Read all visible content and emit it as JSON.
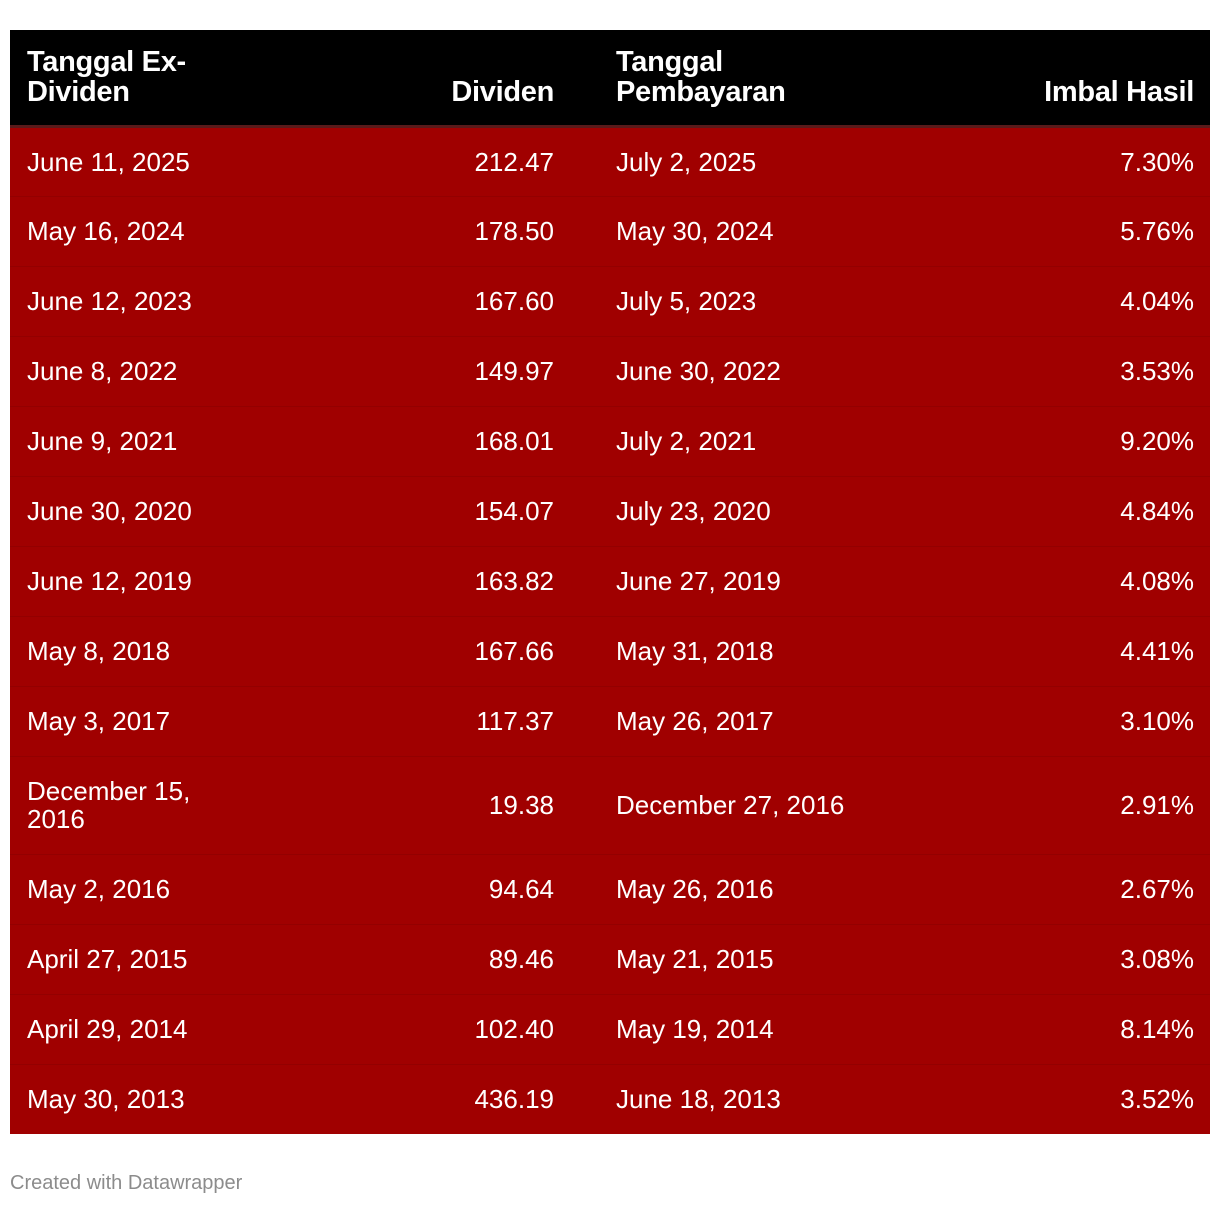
{
  "chart_data": {
    "type": "table",
    "columns": [
      "Tanggal Ex-Dividen",
      "Dividen",
      "Tanggal Pembayaran",
      "Imbal Hasil"
    ],
    "rows": [
      [
        "June 11, 2025",
        "212.47",
        "July 2, 2025",
        "7.30%"
      ],
      [
        "May 16, 2024",
        "178.50",
        "May 30, 2024",
        "5.76%"
      ],
      [
        "June 12, 2023",
        "167.60",
        "July 5, 2023",
        "4.04%"
      ],
      [
        "June 8, 2022",
        "149.97",
        "June 30, 2022",
        "3.53%"
      ],
      [
        "June 9, 2021",
        "168.01",
        "July 2, 2021",
        "9.20%"
      ],
      [
        "June 30, 2020",
        "154.07",
        "July 23, 2020",
        "4.84%"
      ],
      [
        "June 12, 2019",
        "163.82",
        "June 27, 2019",
        "4.08%"
      ],
      [
        "May 8, 2018",
        "167.66",
        "May 31, 2018",
        "4.41%"
      ],
      [
        "May 3, 2017",
        "117.37",
        "May 26, 2017",
        "3.10%"
      ],
      [
        "December 15, 2016",
        "19.38",
        "December 27, 2016",
        "2.91%"
      ],
      [
        "May 2, 2016",
        "94.64",
        "May 26, 2016",
        "2.67%"
      ],
      [
        "April 27, 2015",
        "89.46",
        "May 21, 2015",
        "3.08%"
      ],
      [
        "April 29, 2014",
        "102.40",
        "May 19, 2014",
        "8.14%"
      ],
      [
        "May 30, 2013",
        "436.19",
        "June 18, 2013",
        "3.52%"
      ]
    ],
    "colors": {
      "header_background": "#000000",
      "row_background": "#a00000",
      "text": "#ffffff"
    }
  },
  "footer": {
    "credit": "Created with Datawrapper"
  }
}
